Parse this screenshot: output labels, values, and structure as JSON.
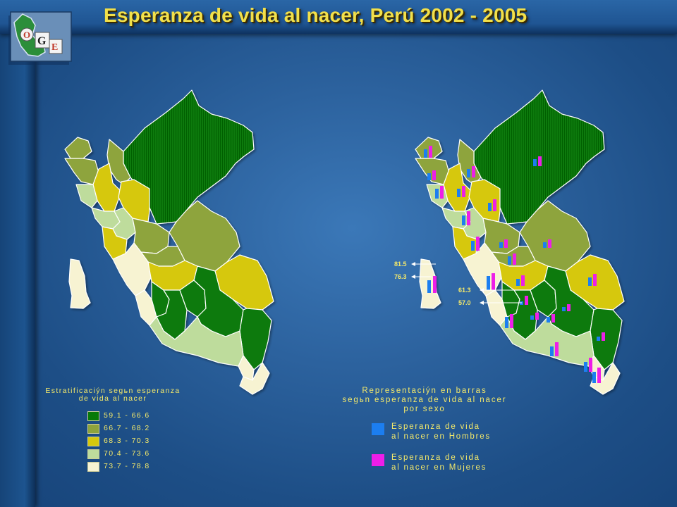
{
  "title": "Esperanza de vida al nacer, Perú 2002 - 2005",
  "logo": {
    "letters": [
      "O",
      "G",
      "E"
    ]
  },
  "colors": {
    "class1": "#087a08",
    "class2": "#8ea43c",
    "class3": "#d6c80e",
    "class4": "#bedc9c",
    "class5": "#f7f3d2",
    "men": "#1c7ef0",
    "women": "#ee1ee8"
  },
  "legend_left": {
    "title_lines": [
      "Estratificaciýn segьn esperanza",
      "de vida al nacer"
    ],
    "items": [
      {
        "label": "59.1 - 66.6",
        "color": "#087a08"
      },
      {
        "label": "66.7 - 68.2",
        "color": "#8ea43c"
      },
      {
        "label": "68.3 - 70.3",
        "color": "#d6c80e"
      },
      {
        "label": "70.4 - 73.6",
        "color": "#bedc9c"
      },
      {
        "label": "73.7 - 78.8",
        "color": "#f7f3d2"
      }
    ]
  },
  "legend_right": {
    "title_lines": [
      "Representaciýn en barras",
      "segьn esperanza de vida al nacer",
      "por sexo"
    ],
    "items": [
      {
        "label_lines": [
          "Esperanza de vida",
          "al nacer en Hombres"
        ],
        "color": "#1c7ef0"
      },
      {
        "label_lines": [
          "Esperanza de vida",
          "al nacer en Mujeres"
        ],
        "color": "#ee1ee8"
      }
    ]
  },
  "callouts": {
    "max_women": "81.5",
    "max_men": "76.3",
    "min_women": "61.3",
    "min_men": "57.0"
  }
}
